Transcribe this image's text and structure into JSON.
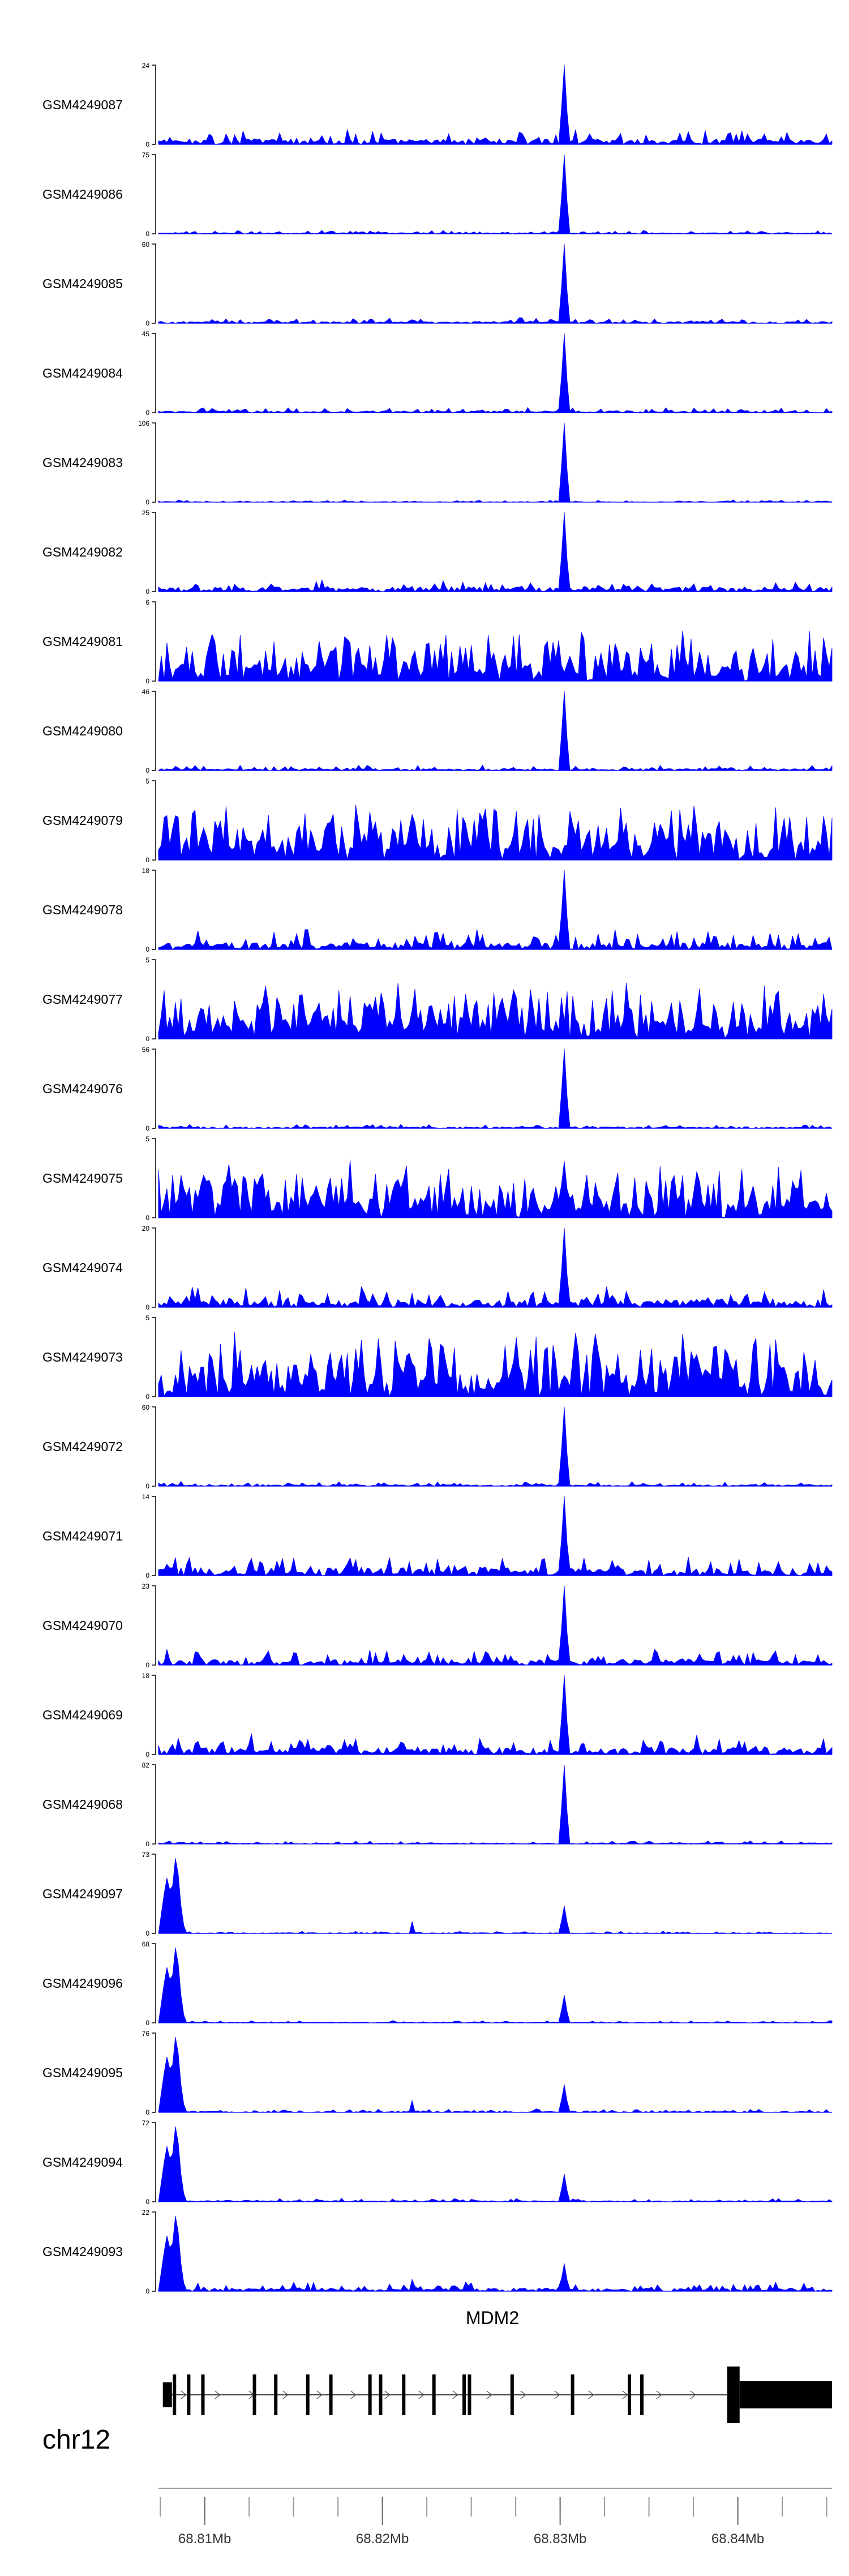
{
  "colors": {
    "signal": "#0000ff",
    "axis": "#000000",
    "gene": "#000000",
    "background": "#ffffff"
  },
  "chart_data": {
    "type": "area",
    "genome": {
      "chromosome": "chr12",
      "range_mb": [
        68.8074,
        68.8453
      ]
    },
    "tracks": [
      {
        "name": "GSM4249087",
        "ymax": 24,
        "profile": "peak",
        "noise": 0.14
      },
      {
        "name": "GSM4249086",
        "ymax": 75,
        "profile": "peak",
        "noise": 0.03
      },
      {
        "name": "GSM4249085",
        "ymax": 60,
        "profile": "peak",
        "noise": 0.05
      },
      {
        "name": "GSM4249084",
        "ymax": 45,
        "profile": "peak",
        "noise": 0.05
      },
      {
        "name": "GSM4249083",
        "ymax": 106,
        "profile": "peak",
        "noise": 0.02
      },
      {
        "name": "GSM4249082",
        "ymax": 25,
        "profile": "peak",
        "noise": 0.12
      },
      {
        "name": "GSM4249081",
        "ymax": 6,
        "profile": "noisy",
        "noise": 0.45
      },
      {
        "name": "GSM4249080",
        "ymax": 46,
        "profile": "peak",
        "noise": 0.05
      },
      {
        "name": "GSM4249079",
        "ymax": 5,
        "profile": "noisy",
        "noise": 0.5
      },
      {
        "name": "GSM4249078",
        "ymax": 18,
        "profile": "peak",
        "noise": 0.18
      },
      {
        "name": "GSM4249077",
        "ymax": 5,
        "profile": "noisy",
        "noise": 0.5
      },
      {
        "name": "GSM4249076",
        "ymax": 56,
        "profile": "peak",
        "noise": 0.04
      },
      {
        "name": "GSM4249075",
        "ymax": 5,
        "profile": "noisy",
        "noise": 0.5
      },
      {
        "name": "GSM4249074",
        "ymax": 20,
        "profile": "peak",
        "noise": 0.2
      },
      {
        "name": "GSM4249073",
        "ymax": 5,
        "profile": "noisy",
        "noise": 0.55
      },
      {
        "name": "GSM4249072",
        "ymax": 60,
        "profile": "peak",
        "noise": 0.04
      },
      {
        "name": "GSM4249071",
        "ymax": 14,
        "profile": "peak",
        "noise": 0.2
      },
      {
        "name": "GSM4249070",
        "ymax": 23,
        "profile": "peak",
        "noise": 0.14
      },
      {
        "name": "GSM4249069",
        "ymax": 18,
        "profile": "peak",
        "noise": 0.18
      },
      {
        "name": "GSM4249068",
        "ymax": 82,
        "profile": "peak",
        "noise": 0.03
      },
      {
        "name": "GSM4249097",
        "ymax": 73,
        "profile": "promoter",
        "noise": 0.02
      },
      {
        "name": "GSM4249096",
        "ymax": 68,
        "profile": "promoter",
        "noise": 0.02
      },
      {
        "name": "GSM4249095",
        "ymax": 76,
        "profile": "promoter",
        "noise": 0.03
      },
      {
        "name": "GSM4249094",
        "ymax": 72,
        "profile": "promoter",
        "noise": 0.03
      },
      {
        "name": "GSM4249093",
        "ymax": 22,
        "profile": "promoter",
        "noise": 0.08
      }
    ],
    "gene": {
      "name": "MDM2",
      "exons_mb": [
        68.8083,
        68.8091,
        68.8099,
        68.8128,
        68.814,
        68.8158,
        68.8171,
        68.8193,
        68.8199,
        68.8212,
        68.8229,
        68.8246,
        68.8249,
        68.8273,
        68.8307,
        68.8339,
        68.8346
      ],
      "utr_start_mb": 68.8079,
      "utr_end_mb": 68.8394
    },
    "axis": {
      "ticks_mb": [
        68.81,
        68.82,
        68.83,
        68.84
      ],
      "tick_labels": [
        "68.81Mb",
        "68.82Mb",
        "68.83Mb",
        "68.84Mb"
      ],
      "minor_step_mb": 0.0025
    }
  }
}
